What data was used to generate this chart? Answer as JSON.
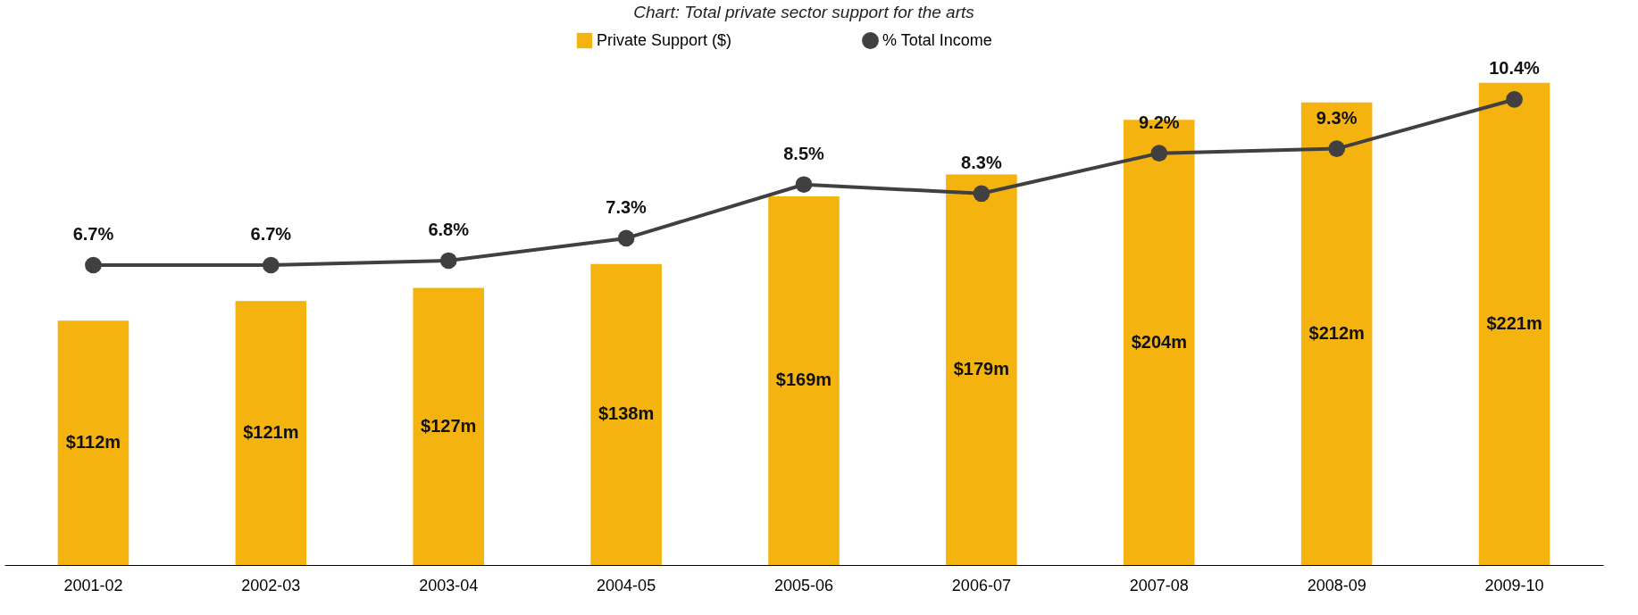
{
  "chart_data": {
    "type": "bar",
    "title": "Chart: Total private  sector support for the arts",
    "categories": [
      "2001-02",
      "2002-03",
      "2003-04",
      "2004-05",
      "2005-06",
      "2006-07",
      "2007-08",
      "2008-09",
      "2009-10"
    ],
    "series": [
      {
        "name": "Private Support ($)",
        "color": "#f5b30f",
        "values": [
          112,
          121,
          127,
          138,
          169,
          179,
          204,
          212,
          221
        ],
        "value_labels": [
          "$112m",
          "$121m",
          "$127m",
          "$138m",
          "$169m",
          "$179m",
          "$204m",
          "$212m",
          "$221m"
        ]
      },
      {
        "name": "% Total Income",
        "type": "line",
        "axis": "y2",
        "color": "#404040",
        "marker": "circle",
        "values": [
          6.7,
          6.7,
          6.8,
          7.3,
          8.5,
          8.3,
          9.2,
          9.3,
          10.4
        ],
        "value_labels": [
          "6.7%",
          "6.7%",
          "6.8%",
          "7.3%",
          "8.5%",
          "8.3%",
          "9.2%",
          "9.3%",
          "10.4%"
        ]
      }
    ],
    "tick_labels": "x",
    "grid": false,
    "legend": "top"
  }
}
